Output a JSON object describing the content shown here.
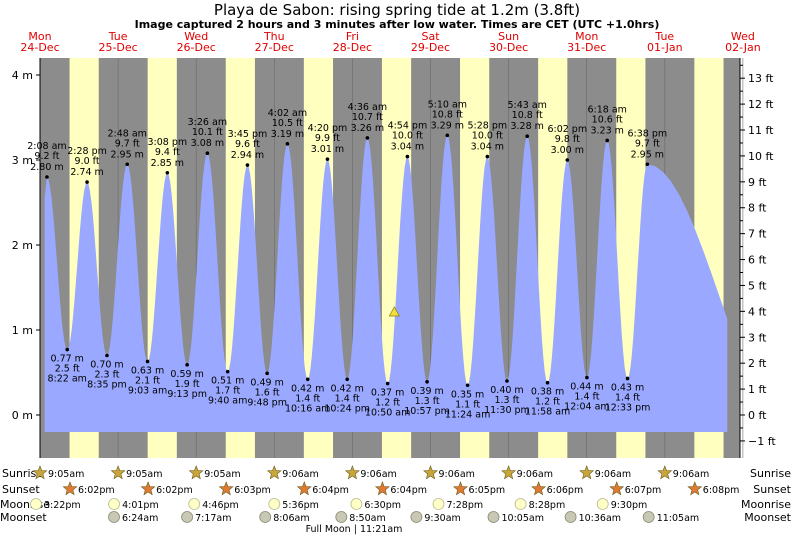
{
  "title": "Playa de Sabon: rising  spring tide at 1.2m (3.8ft)",
  "subtitle": "Image captured 2 hours and 3 minutes after low water. Times are CET (UTC +1.0hrs)",
  "colors": {
    "night": "#8c8c8c",
    "day": "#ffffc0",
    "tide": "#9aa9ff",
    "day_label": "#e00000",
    "marker": "#f0e040"
  },
  "chart_data": {
    "type": "area",
    "title": "Playa de Sabon: rising  spring tide at 1.2m (3.8ft)",
    "days": [
      {
        "dow": "Mon",
        "date": "24-Dec"
      },
      {
        "dow": "Tue",
        "date": "25-Dec"
      },
      {
        "dow": "Wed",
        "date": "26-Dec"
      },
      {
        "dow": "Thu",
        "date": "27-Dec"
      },
      {
        "dow": "Fri",
        "date": "28-Dec"
      },
      {
        "dow": "Sat",
        "date": "29-Dec"
      },
      {
        "dow": "Sun",
        "date": "30-Dec"
      },
      {
        "dow": "Mon",
        "date": "31-Dec"
      },
      {
        "dow": "Tue",
        "date": "01-Jan"
      },
      {
        "dow": "Wed",
        "date": "02-Jan"
      }
    ],
    "y_left": {
      "unit": "m",
      "ylim": [
        -0.5,
        4.2
      ],
      "ticks": [
        {
          "v": 0,
          "label": "0 m"
        },
        {
          "v": 1,
          "label": "1 m"
        },
        {
          "v": 2,
          "label": "2 m"
        },
        {
          "v": 3,
          "label": "3 m"
        },
        {
          "v": 4,
          "label": "4 m"
        }
      ]
    },
    "y_right": {
      "unit": "ft",
      "ticks": [
        {
          "v": -1,
          "label": "−1 ft"
        },
        {
          "v": 0,
          "label": "0 ft"
        },
        {
          "v": 1,
          "label": "1 ft"
        },
        {
          "v": 2,
          "label": "2 ft"
        },
        {
          "v": 3,
          "label": "3 ft"
        },
        {
          "v": 4,
          "label": "4 ft"
        },
        {
          "v": 5,
          "label": "5 ft"
        },
        {
          "v": 6,
          "label": "6 ft"
        },
        {
          "v": 7,
          "label": "7 ft"
        },
        {
          "v": 8,
          "label": "8 ft"
        },
        {
          "v": 9,
          "label": "9 ft"
        },
        {
          "v": 10,
          "label": "10 ft"
        },
        {
          "v": 11,
          "label": "11 ft"
        },
        {
          "v": 12,
          "label": "12 ft"
        },
        {
          "v": 13,
          "label": "13 ft"
        }
      ]
    },
    "tides": [
      {
        "type": "high",
        "day": 0,
        "time": "2:08 am",
        "h": 2.8,
        "ft": "9.2 ft",
        "m": "2.80 m"
      },
      {
        "type": "low",
        "day": 0,
        "time": "8:22 am",
        "h": 0.77,
        "ft": "2.5 ft",
        "m": "0.77 m"
      },
      {
        "type": "high",
        "day": 0,
        "time": "2:28 pm",
        "h": 2.74,
        "ft": "9.0 ft",
        "m": "2.74 m"
      },
      {
        "type": "low",
        "day": 0,
        "time": "8:35 pm",
        "h": 0.7,
        "ft": "2.3 ft",
        "m": "0.70 m"
      },
      {
        "type": "high",
        "day": 1,
        "time": "2:48 am",
        "h": 2.95,
        "ft": "9.7 ft",
        "m": "2.95 m"
      },
      {
        "type": "low",
        "day": 1,
        "time": "9:03 am",
        "h": 0.63,
        "ft": "2.1 ft",
        "m": "0.63 m"
      },
      {
        "type": "high",
        "day": 1,
        "time": "3:08 pm",
        "h": 2.85,
        "ft": "9.4 ft",
        "m": "2.85 m"
      },
      {
        "type": "low",
        "day": 1,
        "time": "9:13 pm",
        "h": 0.59,
        "ft": "1.9 ft",
        "m": "0.59 m"
      },
      {
        "type": "high",
        "day": 2,
        "time": "3:26 am",
        "h": 3.08,
        "ft": "10.1 ft",
        "m": "3.08 m"
      },
      {
        "type": "low",
        "day": 2,
        "time": "9:40 am",
        "h": 0.51,
        "ft": "1.7 ft",
        "m": "0.51 m"
      },
      {
        "type": "high",
        "day": 2,
        "time": "3:45 pm",
        "h": 2.94,
        "ft": "9.6 ft",
        "m": "2.94 m"
      },
      {
        "type": "low",
        "day": 2,
        "time": "9:48 pm",
        "h": 0.49,
        "ft": "1.6 ft",
        "m": "0.49 m"
      },
      {
        "type": "high",
        "day": 3,
        "time": "4:02 am",
        "h": 3.19,
        "ft": "10.5 ft",
        "m": "3.19 m"
      },
      {
        "type": "low",
        "day": 3,
        "time": "10:16 am",
        "h": 0.42,
        "ft": "1.4 ft",
        "m": "0.42 m"
      },
      {
        "type": "high",
        "day": 3,
        "time": "4:20 pm",
        "h": 3.01,
        "ft": "9.9 ft",
        "m": "3.01 m"
      },
      {
        "type": "low",
        "day": 3,
        "time": "10:24 pm",
        "h": 0.42,
        "ft": "1.4 ft",
        "m": "0.42 m"
      },
      {
        "type": "high",
        "day": 4,
        "time": "4:36 am",
        "h": 3.26,
        "ft": "10.7 ft",
        "m": "3.26 m"
      },
      {
        "type": "low",
        "day": 4,
        "time": "10:50 am",
        "h": 0.37,
        "ft": "1.2 ft",
        "m": "0.37 m"
      },
      {
        "type": "high",
        "day": 4,
        "time": "4:54 pm",
        "h": 3.04,
        "ft": "10.0 ft",
        "m": "3.04 m"
      },
      {
        "type": "low",
        "day": 4,
        "time": "10:57 pm",
        "h": 0.39,
        "ft": "1.3 ft",
        "m": "0.39 m"
      },
      {
        "type": "high",
        "day": 5,
        "time": "5:10 am",
        "h": 3.29,
        "ft": "10.8 ft",
        "m": "3.29 m"
      },
      {
        "type": "low",
        "day": 5,
        "time": "11:24 am",
        "h": 0.35,
        "ft": "1.1 ft",
        "m": "0.35 m"
      },
      {
        "type": "high",
        "day": 5,
        "time": "5:28 pm",
        "h": 3.04,
        "ft": "10.0 ft",
        "m": "3.04 m"
      },
      {
        "type": "low",
        "day": 5,
        "time": "11:30 pm",
        "h": 0.4,
        "ft": "1.3 ft",
        "m": "0.40 m"
      },
      {
        "type": "high",
        "day": 6,
        "time": "5:43 am",
        "h": 3.28,
        "ft": "10.8 ft",
        "m": "3.28 m"
      },
      {
        "type": "low",
        "day": 6,
        "time": "11:58 am",
        "h": 0.38,
        "ft": "1.2 ft",
        "m": "0.38 m"
      },
      {
        "type": "high",
        "day": 6,
        "time": "6:02 pm",
        "h": 3.0,
        "ft": "9.8 ft",
        "m": "3.00 m"
      },
      {
        "type": "low",
        "day": 7,
        "time": "12:04 am",
        "h": 0.44,
        "ft": "1.4 ft",
        "m": "0.44 m"
      },
      {
        "type": "high",
        "day": 7,
        "time": "6:18 am",
        "h": 3.23,
        "ft": "10.6 ft",
        "m": "3.23 m"
      },
      {
        "type": "low",
        "day": 7,
        "time": "12:33 pm",
        "h": 0.43,
        "ft": "1.4 ft",
        "m": "0.43 m"
      },
      {
        "type": "high",
        "day": 7,
        "time": "6:38 pm",
        "h": 2.95,
        "ft": "9.7 ft",
        "m": "2.95 m"
      }
    ],
    "current": {
      "h": 1.2
    }
  },
  "rows": {
    "sunrise": {
      "label": "Sunrise",
      "times": [
        "9:05am",
        "9:05am",
        "9:05am",
        "9:06am",
        "9:06am",
        "9:06am",
        "9:06am",
        "9:06am",
        "9:06am"
      ]
    },
    "sunset": {
      "label": "Sunset",
      "times": [
        "6:02pm",
        "6:02pm",
        "6:03pm",
        "6:04pm",
        "6:04pm",
        "6:05pm",
        "6:06pm",
        "6:07pm",
        "6:08pm"
      ]
    },
    "moonrise": {
      "label": "Moonrise",
      "times": [
        "3:22pm",
        "4:01pm",
        "4:46pm",
        "5:36pm",
        "6:30pm",
        "7:28pm",
        "8:28pm",
        "9:30pm"
      ]
    },
    "moonset": {
      "label": "Moonset",
      "times": [
        "6:24am",
        "7:17am",
        "8:06am",
        "8:50am",
        "9:30am",
        "10:05am",
        "10:36am",
        "11:05am"
      ]
    },
    "full_moon": "Full Moon | 11:21am"
  }
}
